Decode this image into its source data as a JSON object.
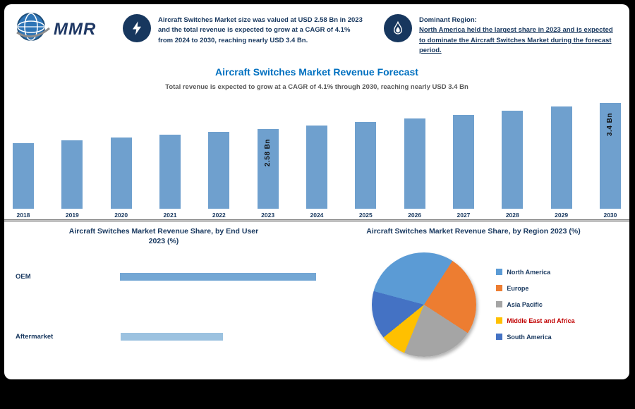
{
  "brand": {
    "logo_text": "MMR",
    "navy": "#17375e",
    "accent_blue": "#0070c0",
    "bar_blue": "#6fa0ce"
  },
  "header": {
    "highlight1": {
      "icon": "lightning",
      "text": "Aircraft Switches Market size was valued at USD 2.58 Bn in 2023 and the total revenue is expected to grow at a CAGR of 4.1% from 2024 to 2030, reaching nearly USD 3.4 Bn."
    },
    "highlight2": {
      "icon": "flame",
      "title": "Dominant Region:",
      "text": "North America held the largest share in 2023 and is expected to dominate the Aircraft Switches Market during the forecast period."
    }
  },
  "main": {
    "title": "Aircraft Switches Market Revenue Forecast",
    "subtitle": "Total revenue is expected to grow at a CAGR of 4.1% through 2030, reaching nearly USD 3.4 Bn"
  },
  "sections": {
    "left_heading_line1": "Aircraft Switches Market Revenue Share, by End User",
    "left_heading_line2": "2023 (%)",
    "right_heading": "Aircraft Switches Market Revenue Share, by Region 2023 (%)"
  },
  "chart_data": [
    {
      "type": "bar",
      "title": "Aircraft Switches Market Revenue Forecast",
      "unit": "USD Bn",
      "categories": [
        "2018",
        "2019",
        "2020",
        "2021",
        "2022",
        "2023",
        "2024",
        "2025",
        "2026",
        "2027",
        "2028",
        "2029",
        "2030"
      ],
      "values": [
        2.11,
        2.2,
        2.29,
        2.38,
        2.48,
        2.58,
        2.69,
        2.8,
        2.91,
        3.03,
        3.16,
        3.29,
        3.4
      ],
      "bar_labels": {
        "2023": "2.58 Bn",
        "2030": "3.4 Bn"
      },
      "ylim": [
        0,
        3.6
      ],
      "bar_color": "#6fa0ce"
    },
    {
      "type": "bar",
      "orientation": "horizontal",
      "title": "Aircraft Switches Market Revenue Share, by End User 2023 (%)",
      "categories": [
        "OEM",
        "Aftermarket"
      ],
      "values": [
        66,
        34
      ],
      "colors": [
        "#74a7d4",
        "#9cc2e0"
      ]
    },
    {
      "type": "pie",
      "title": "Aircraft Switches Market Revenue Share, by Region 2023 (%)",
      "labels": [
        "North America",
        "Europe",
        "Asia Pacific",
        "Middle East and Africa",
        "South America"
      ],
      "values": [
        30,
        25,
        22,
        8,
        15
      ],
      "colors": [
        "#5b9bd5",
        "#ed7d31",
        "#a5a5a5",
        "#ffc000",
        "#4472c4"
      ],
      "label_colors": [
        "#17375e",
        "#17375e",
        "#17375e",
        "#c00000",
        "#17375e"
      ],
      "legend_position": "right",
      "start_angle_deg": -75
    }
  ]
}
